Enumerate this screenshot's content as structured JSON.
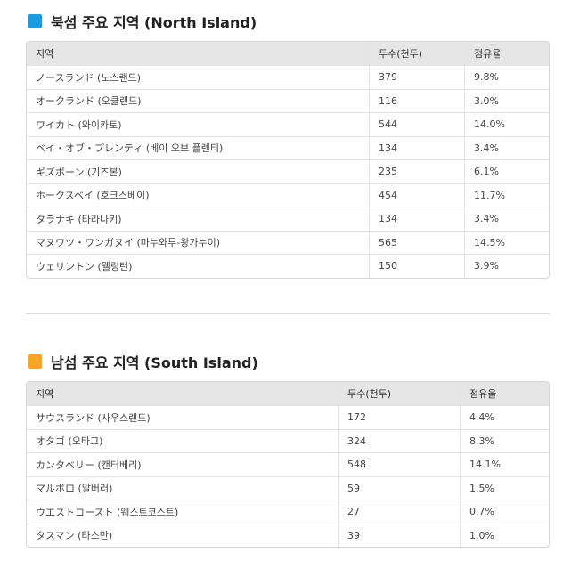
{
  "colors": {
    "north_accent": "#1a9be0",
    "south_accent": "#f5a623"
  },
  "north": {
    "title": "북섬 주요 지역 (North Island)",
    "headers": [
      "지역",
      "두수(천두)",
      "점유율"
    ],
    "rows": [
      [
        "ノースランド (노스랜드)",
        "379",
        "9.8%"
      ],
      [
        "オークランド (오클랜드)",
        "116",
        "3.0%"
      ],
      [
        "ワイカト (와이카토)",
        "544",
        "14.0%"
      ],
      [
        "ベイ・オブ・プレンティ (베이 오브 플렌티)",
        "134",
        "3.4%"
      ],
      [
        "ギズボーン (기즈본)",
        "235",
        "6.1%"
      ],
      [
        "ホークスベイ (호크스베이)",
        "454",
        "11.7%"
      ],
      [
        "タラナキ (타라나키)",
        "134",
        "3.4%"
      ],
      [
        "マヌワツ・ワンガヌイ (마누와투-왕가누이)",
        "565",
        "14.5%"
      ],
      [
        "ウェリントン (웰링턴)",
        "150",
        "3.9%"
      ]
    ]
  },
  "south": {
    "title": "남섬 주요 지역 (South Island)",
    "headers": [
      "지역",
      "두수(천두)",
      "점유율"
    ],
    "rows": [
      [
        "サウスランド (사우스랜드)",
        "172",
        "4.4%"
      ],
      [
        "オタゴ (오타고)",
        "324",
        "8.3%"
      ],
      [
        "カンタベリー (캔터베리)",
        "548",
        "14.1%"
      ],
      [
        "マルボロ (말버러)",
        "59",
        "1.5%"
      ],
      [
        "ウエストコースト (웨스트코스트)",
        "27",
        "0.7%"
      ],
      [
        "タスマン (타스만)",
        "39",
        "1.0%"
      ]
    ]
  }
}
